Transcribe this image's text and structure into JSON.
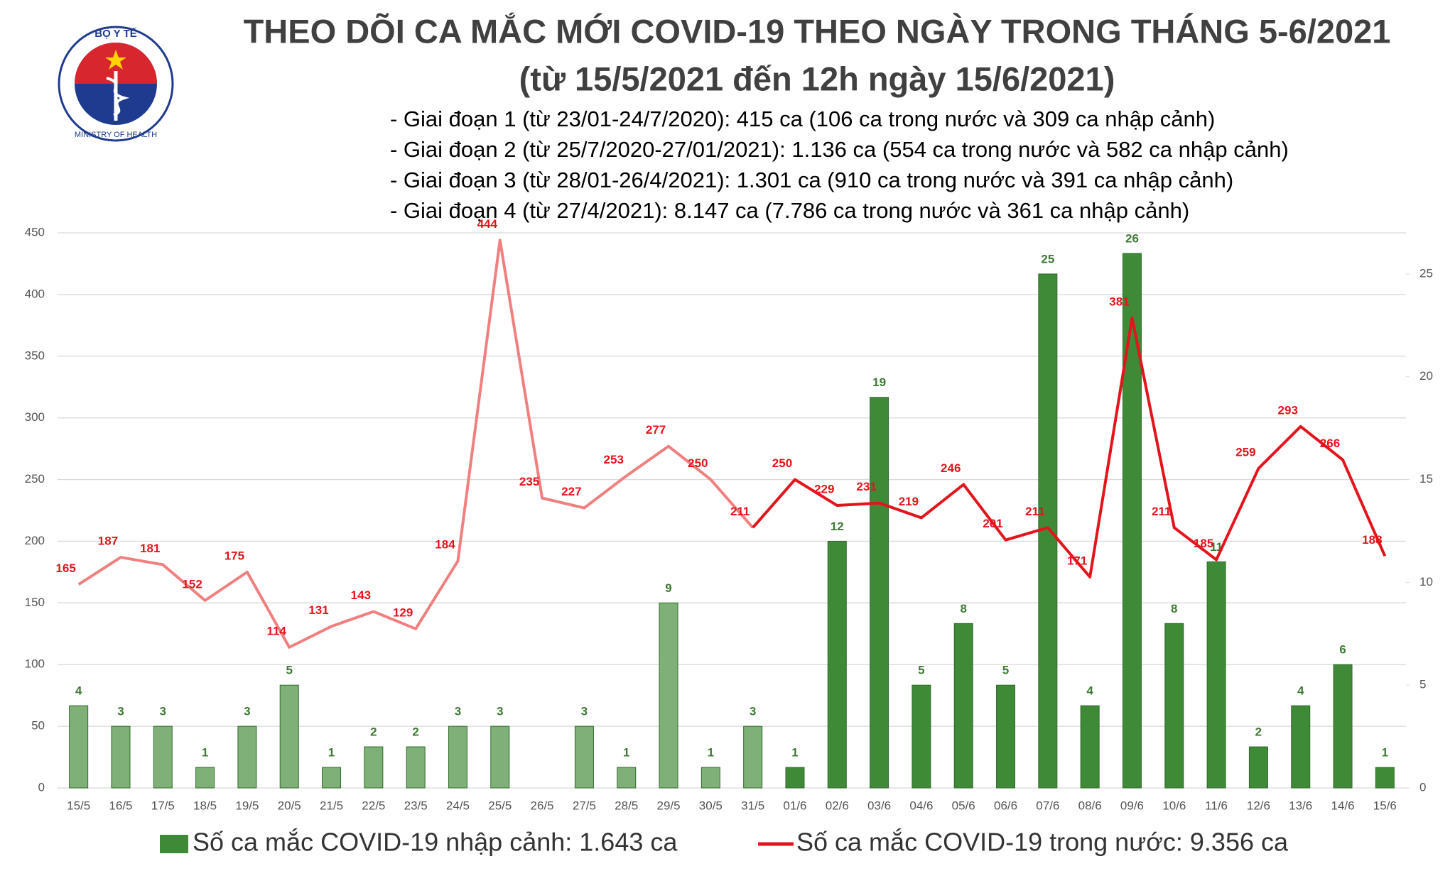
{
  "logo": {
    "top": "BỘ Y TẾ",
    "bottom": "MINISTRY OF HEALTH"
  },
  "chart_data": {
    "type": "bar_line",
    "title": "THEO DÕI CA MẮC MỚI COVID-19 THEO NGÀY TRONG THÁNG 5-6/2021",
    "subtitle": "(từ 15/5/2021 đến 12h ngày 15/6/2021)",
    "annotations": [
      "- Giai đoạn 1 (từ 23/01-24/7/2020): 415 ca (106 ca trong nước và 309 ca nhập cảnh)",
      "- Giai đoạn 2 (từ 25/7/2020-27/01/2021): 1.136 ca (554 ca trong nước và 582 ca nhập cảnh)",
      "- Giai đoạn 3 (từ 28/01-26/4/2021): 1.301 ca (910 ca trong nước và 391 ca nhập cảnh)",
      "- Giai đoạn 4 (từ 27/4/2021): 8.147 ca (7.786 ca trong nước và 361 ca nhập cảnh)"
    ],
    "categories": [
      "15/5",
      "16/5",
      "17/5",
      "18/5",
      "19/5",
      "20/5",
      "21/5",
      "22/5",
      "23/5",
      "24/5",
      "25/5",
      "26/5",
      "27/5",
      "28/5",
      "29/5",
      "30/5",
      "31/5",
      "01/6",
      "02/6",
      "03/6",
      "04/6",
      "05/6",
      "06/6",
      "07/6",
      "08/6",
      "09/6",
      "10/6",
      "11/6",
      "12/6",
      "13/6",
      "14/6",
      "15/6"
    ],
    "series": [
      {
        "name": "Số ca mắc COVID-19 nhập cảnh: 1.643 ca",
        "kind": "bar",
        "axis": "y2",
        "color": "#3f8a37",
        "faded_color": "#7fb077",
        "values": [
          4,
          3,
          3,
          1,
          3,
          5,
          1,
          2,
          2,
          3,
          3,
          null,
          3,
          1,
          9,
          1,
          3,
          1,
          12,
          19,
          5,
          8,
          5,
          25,
          4,
          26,
          8,
          11,
          2,
          4,
          6,
          1
        ]
      },
      {
        "name": "Số ca mắc COVID-19 trong nước: 9.356 ca",
        "kind": "line",
        "axis": "y",
        "color": "#e3141b",
        "faded_color": "#f08080",
        "values": [
          165,
          187,
          181,
          152,
          175,
          114,
          131,
          143,
          129,
          184,
          444,
          235,
          227,
          253,
          277,
          250,
          211,
          250,
          229,
          231,
          219,
          246,
          201,
          211,
          171,
          381,
          211,
          185,
          259,
          293,
          266,
          188
        ]
      }
    ],
    "faded_count": 17,
    "ylim": [
      0,
      450
    ],
    "yticks": [
      0,
      50,
      100,
      150,
      200,
      250,
      300,
      350,
      400,
      450
    ],
    "y2lim": [
      0,
      27
    ],
    "y2ticks": [
      0,
      5,
      10,
      15,
      20,
      25
    ],
    "grid": true,
    "legend": "bottom"
  }
}
